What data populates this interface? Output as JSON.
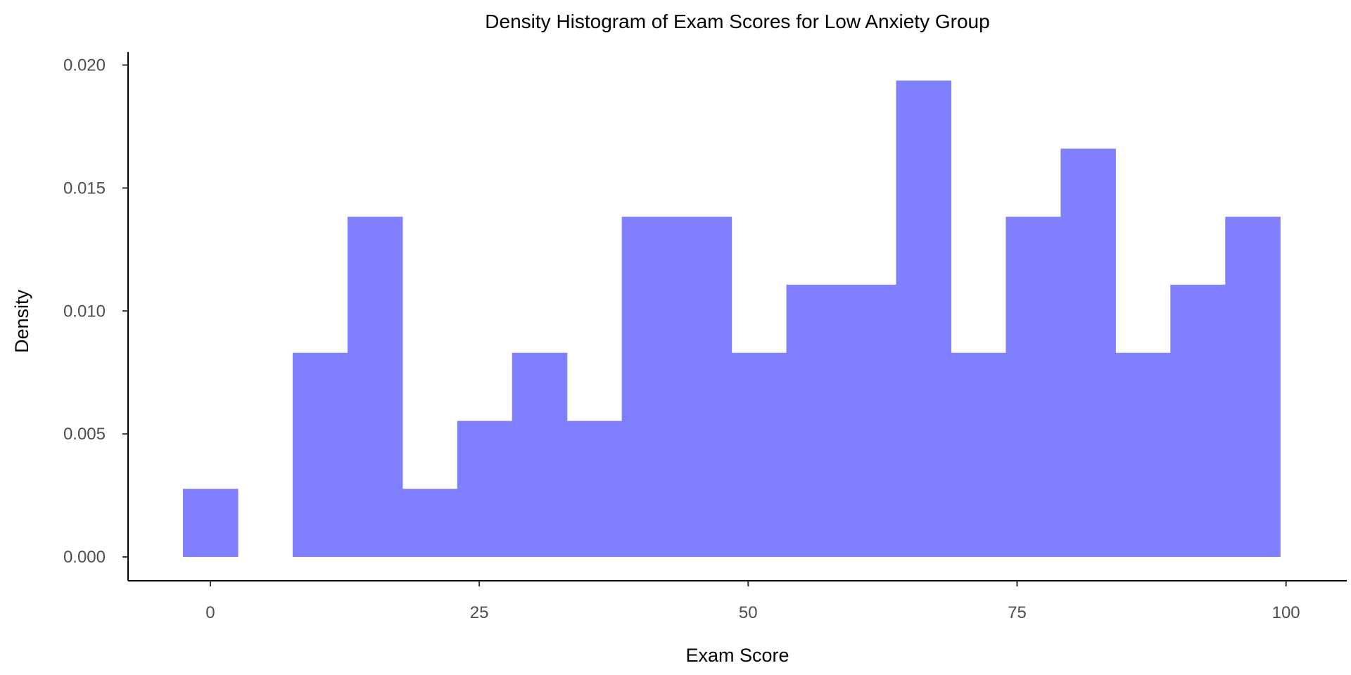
{
  "chart_data": {
    "type": "bar",
    "title": "Density Histogram of Exam Scores for Low Anxiety Group",
    "xlabel": "Exam Score",
    "ylabel": "Density",
    "xlim": [
      -7.65,
      105.65
    ],
    "ylim": [
      -0.00097,
      0.0203
    ],
    "x_ticks": [
      0,
      25,
      50,
      75,
      100
    ],
    "x_tick_labels": [
      "0",
      "25",
      "50",
      "75",
      "100"
    ],
    "y_ticks": [
      0,
      0.005,
      0.01,
      0.015,
      0.02
    ],
    "y_tick_labels": [
      "0.000",
      "0.005",
      "0.010",
      "0.015",
      "0.020"
    ],
    "bin_width": 5.1,
    "bins": [
      {
        "start": -2.55,
        "end": 2.55,
        "density": 0.00277
      },
      {
        "start": 2.55,
        "end": 7.65,
        "density": 0
      },
      {
        "start": 7.65,
        "end": 12.75,
        "density": 0.0083
      },
      {
        "start": 12.75,
        "end": 17.85,
        "density": 0.01383
      },
      {
        "start": 17.85,
        "end": 22.95,
        "density": 0.00277
      },
      {
        "start": 22.95,
        "end": 28.05,
        "density": 0.00553
      },
      {
        "start": 28.05,
        "end": 33.15,
        "density": 0.0083
      },
      {
        "start": 33.15,
        "end": 38.25,
        "density": 0.00553
      },
      {
        "start": 38.25,
        "end": 43.35,
        "density": 0.01383
      },
      {
        "start": 43.35,
        "end": 48.45,
        "density": 0.01383
      },
      {
        "start": 48.45,
        "end": 53.55,
        "density": 0.0083
      },
      {
        "start": 53.55,
        "end": 58.65,
        "density": 0.01107
      },
      {
        "start": 58.65,
        "end": 63.75,
        "density": 0.01107
      },
      {
        "start": 63.75,
        "end": 68.85,
        "density": 0.01937
      },
      {
        "start": 68.85,
        "end": 73.95,
        "density": 0.0083
      },
      {
        "start": 73.95,
        "end": 79.05,
        "density": 0.01383
      },
      {
        "start": 79.05,
        "end": 84.15,
        "density": 0.0166
      },
      {
        "start": 84.15,
        "end": 89.25,
        "density": 0.0083
      },
      {
        "start": 89.25,
        "end": 94.35,
        "density": 0.01107
      },
      {
        "start": 94.35,
        "end": 99.45,
        "density": 0.01383
      }
    ],
    "bar_color": "#8080ff",
    "grid": false,
    "legend": "none"
  }
}
